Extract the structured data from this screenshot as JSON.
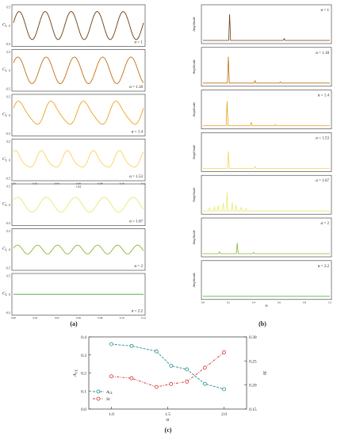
{
  "colors": {
    "alpha_1": "#6b3d0e",
    "alpha_1.18": "#c0700f",
    "alpha_1.4": "#f0a020",
    "alpha_1.53": "#fbd25a",
    "alpha_1.67": "#e6ea70",
    "alpha_2": "#8ab535",
    "alpha_2.2": "#5cb54a",
    "ACL_line": "#1f8f8a",
    "St_line": "#d63232"
  },
  "panel_labels": {
    "a": "(a)",
    "b": "(b)",
    "c": "(c)"
  },
  "chart_data": [
    {
      "type": "line",
      "panel": "a",
      "description_axis": "time traces",
      "ylabel": "C_L",
      "ylabel_main": "C",
      "ylabel_sub": "L",
      "xlabel": "t (s)",
      "xlim": [
        0.0,
        0.12
      ],
      "xticks": [
        "0.00",
        "0.02",
        "0.04",
        "0.06",
        "0.08",
        "0.10",
        "0.12"
      ],
      "ylim": [
        -0.5,
        0.5
      ],
      "yticks": [
        "0.5",
        "0",
        "-0.5"
      ],
      "series": [
        {
          "name": "α = 1",
          "key": "alpha_1",
          "amplitude": 0.38,
          "cycles": 5.0,
          "phase": 0.2,
          "mean": 0.0,
          "harm2": 0.0
        },
        {
          "name": "α = 1.18",
          "key": "alpha_1.18",
          "amplitude": 0.36,
          "cycles": 4.6,
          "phase": 0.6,
          "mean": 0.0,
          "harm2": 0.0
        },
        {
          "name": "α = 1.4",
          "key": "alpha_1.4",
          "amplitude": 0.3,
          "cycles": 4.0,
          "phase": 0.4,
          "mean": 0.05,
          "harm2": 0.05
        },
        {
          "name": "α = 1.53",
          "key": "alpha_1.53",
          "amplitude": 0.22,
          "cycles": 5.0,
          "phase": 1.0,
          "mean": 0.0,
          "harm2": 0.04
        },
        {
          "name": "α = 1.67",
          "key": "alpha_1.67",
          "amplitude": 0.2,
          "cycles": 4.5,
          "phase": 0.7,
          "mean": 0.0,
          "harm2": 0.0
        },
        {
          "name": "α = 2",
          "key": "alpha_2",
          "amplitude": 0.12,
          "cycles": 6.5,
          "phase": 0.3,
          "mean": 0.0,
          "harm2": 0.0
        },
        {
          "name": "α = 2.2",
          "key": "alpha_2.2",
          "amplitude": 0.0,
          "cycles": 0.0,
          "phase": 0.0,
          "mean": 0.0,
          "harm2": 0.0
        }
      ],
      "visible_tick_labels_x": [
        "0.00",
        "0.02",
        "0.04",
        "0.06",
        "0.08",
        "0.10",
        "0.12"
      ]
    },
    {
      "type": "line",
      "panel": "b",
      "ylabel": "Amplitude",
      "xlabel": "St",
      "xlim": [
        0.0,
        1.0
      ],
      "xticks": [
        "0.0",
        "0.2",
        "0.4",
        "0.6",
        "0.8",
        "1.0"
      ],
      "series": [
        {
          "name": "α = 1",
          "key": "alpha_1",
          "peaks": [
            [
              0.21,
              0.85
            ],
            [
              0.64,
              0.06
            ]
          ]
        },
        {
          "name": "α = 1.18",
          "key": "alpha_1.18",
          "peaks": [
            [
              0.2,
              0.85
            ],
            [
              0.41,
              0.08
            ],
            [
              0.61,
              0.04
            ]
          ]
        },
        {
          "name": "α = 1.4",
          "key": "alpha_1.4",
          "peaks": [
            [
              0.19,
              0.8
            ],
            [
              0.38,
              0.12
            ],
            [
              0.57,
              0.04
            ]
          ]
        },
        {
          "name": "α = 1.53",
          "key": "alpha_1.53",
          "peaks": [
            [
              0.2,
              0.55
            ],
            [
              0.41,
              0.06
            ]
          ]
        },
        {
          "name": "α = 1.67",
          "key": "alpha_1.67",
          "peaks": [
            [
              0.05,
              0.1
            ],
            [
              0.09,
              0.15
            ],
            [
              0.12,
              0.18
            ],
            [
              0.16,
              0.25
            ],
            [
              0.19,
              0.6
            ],
            [
              0.23,
              0.28
            ],
            [
              0.26,
              0.2
            ],
            [
              0.3,
              0.12
            ],
            [
              0.34,
              0.08
            ]
          ]
        },
        {
          "name": "α = 2",
          "key": "alpha_2",
          "peaks": [
            [
              0.13,
              0.06
            ],
            [
              0.27,
              0.35
            ],
            [
              0.4,
              0.04
            ]
          ]
        },
        {
          "name": "α = 2.2",
          "key": "alpha_2.2",
          "peaks": []
        }
      ]
    },
    {
      "type": "line",
      "panel": "c",
      "x": [
        1.0,
        1.18,
        1.4,
        1.53,
        1.67,
        1.83,
        2.0
      ],
      "xlabel": "α",
      "xlim": [
        0.8,
        2.2
      ],
      "xticks": [
        "1.0",
        "1.5",
        "2.0"
      ],
      "ylabel_left_main": "A",
      "ylabel_left_sub": "CL",
      "ylim_left": [
        0.0,
        0.4
      ],
      "yticks_left": [
        "0.0",
        "0.1",
        "0.2",
        "0.3",
        "0.4"
      ],
      "ylabel_right": "St",
      "ylim_right": [
        0.15,
        0.3
      ],
      "yticks_right": [
        "0.15",
        "0.20",
        "0.25",
        "0.30"
      ],
      "series": [
        {
          "name": "A_CL",
          "legend_main": "A",
          "legend_sub": "CL",
          "axis": "left",
          "key": "ACL_line",
          "values": [
            0.36,
            0.35,
            0.32,
            0.24,
            0.22,
            0.14,
            0.11
          ]
        },
        {
          "name": "St",
          "legend": "St",
          "axis": "right",
          "key": "St_line",
          "values": [
            0.218,
            0.214,
            0.196,
            0.202,
            0.207,
            0.236,
            0.268
          ]
        }
      ],
      "legend_position": "bottom-left"
    }
  ]
}
